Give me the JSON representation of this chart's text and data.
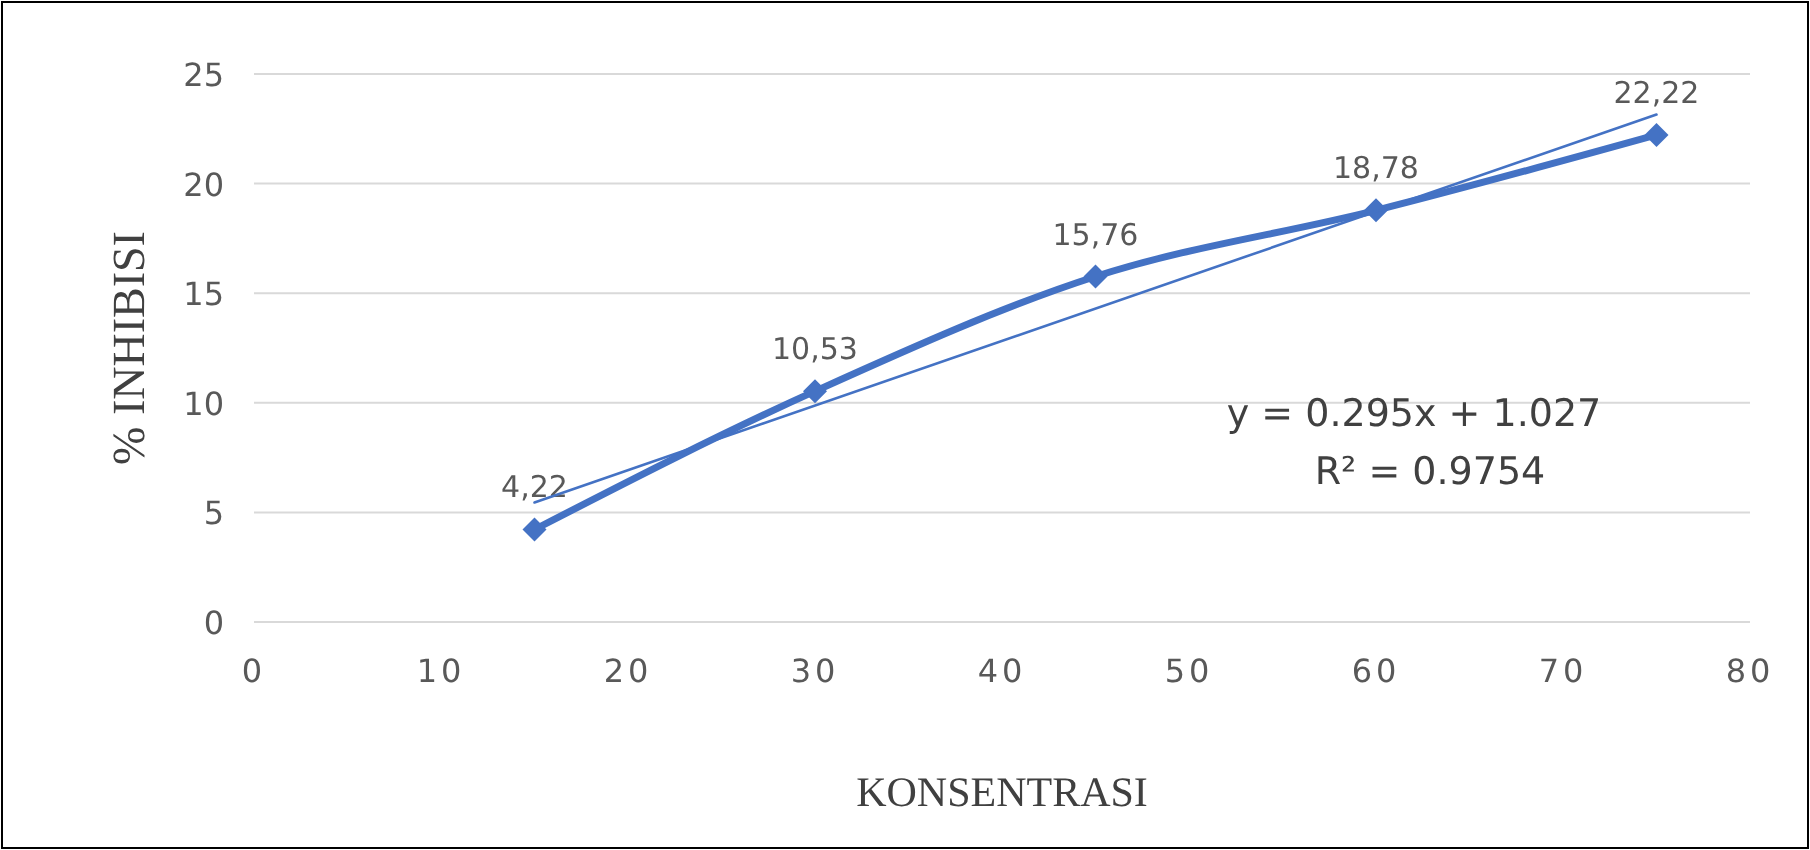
{
  "chart_data": {
    "type": "line",
    "xlabel": "KONSENTRASI",
    "ylabel": "% INHIBISI",
    "xlim": [
      0,
      80
    ],
    "xticks": [
      0,
      10,
      20,
      30,
      40,
      50,
      60,
      70,
      80
    ],
    "ylim": [
      0,
      25
    ],
    "yticks": [
      0,
      5,
      10,
      15,
      20,
      25
    ],
    "grid": "y",
    "series": [
      {
        "color": "#4472c4",
        "x": [
          15,
          30,
          45,
          60,
          75
        ],
        "values": [
          4.22,
          10.53,
          15.76,
          18.78,
          22.22
        ],
        "value_labels": [
          "4,22",
          "10,53",
          "15,76",
          "18,78",
          "22,22"
        ],
        "marker": "diamond",
        "line_style": "solid"
      },
      {
        "color": "#4472c4",
        "x": [
          15,
          75
        ],
        "values": [
          5.45,
          23.15
        ],
        "marker": "none",
        "line_style": "solid"
      }
    ],
    "annotations": [
      "y = 0.295x + 1.027",
      "R² = 0.9754"
    ]
  }
}
